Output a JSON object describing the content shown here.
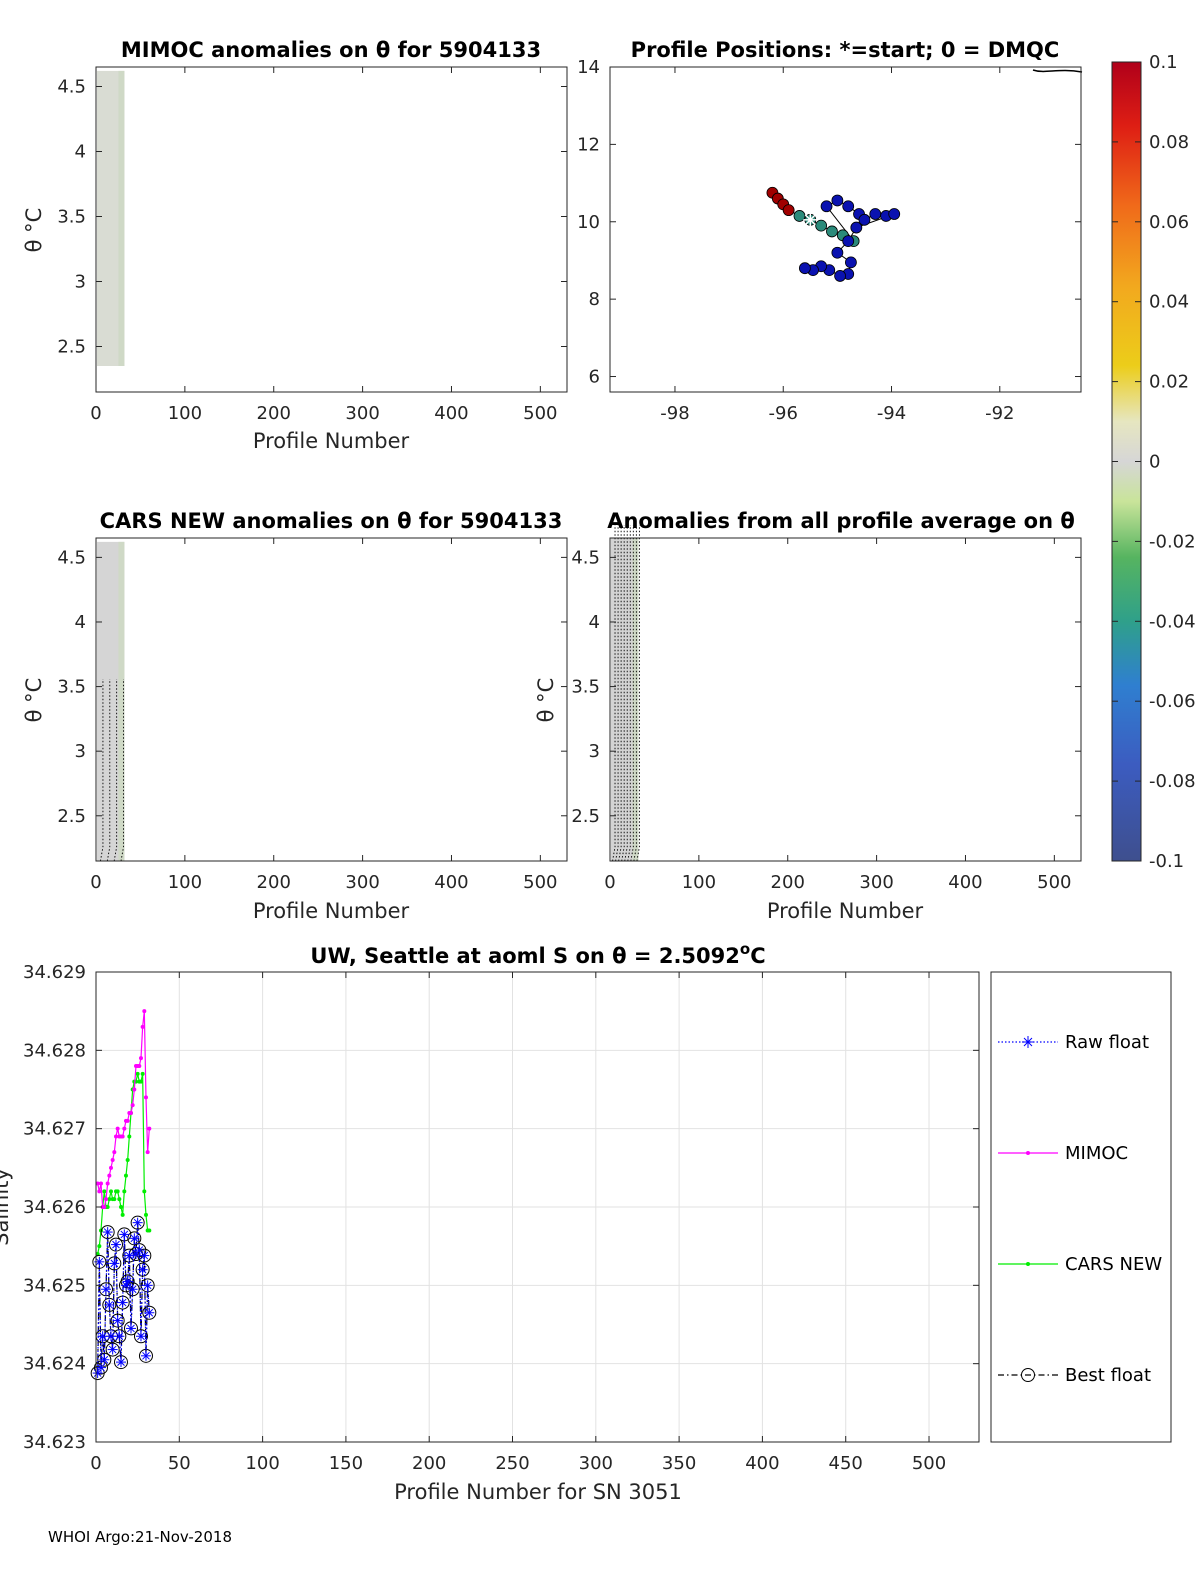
{
  "footer": "WHOI Argo:21-Nov-2018",
  "colorbar": {
    "ticks": [
      "0.1",
      "0.08",
      "0.06",
      "0.04",
      "0.02",
      "0",
      "-0.02",
      "-0.04",
      "-0.06",
      "-0.08",
      "-0.1"
    ],
    "range": [
      -0.1,
      0.1
    ],
    "colormap": "parula-jet"
  },
  "chart_data": [
    {
      "id": "mimoc",
      "type": "heatmap",
      "title": "MIMOC anomalies on θ  for 5904133",
      "xlabel": "Profile Number",
      "ylabel": "θ °C",
      "xlim": [
        0,
        530
      ],
      "ylim": [
        2.15,
        4.65
      ],
      "xticks": [
        "0",
        "100",
        "200",
        "300",
        "400",
        "500"
      ],
      "yticks": [
        "2.5",
        "3",
        "3.5",
        "4",
        "4.5"
      ],
      "data_x_range": [
        0,
        32
      ],
      "data_y_range": [
        2.35,
        4.62
      ],
      "fill_color": "#d9dcd3"
    },
    {
      "id": "positions",
      "type": "scatter",
      "title": "Profile Positions: *=start; 0 = DMQC",
      "xlabel": "",
      "ylabel": "",
      "xlim": [
        -99.2,
        -90.5
      ],
      "ylim": [
        5.6,
        14
      ],
      "xticks": [
        "-98",
        "-96",
        "-94",
        "-92"
      ],
      "yticks": [
        "6",
        "8",
        "10",
        "12",
        "14"
      ],
      "start": {
        "lon": -95.5,
        "lat": 10.05
      },
      "points": [
        {
          "lon": -96.2,
          "lat": 10.75
        },
        {
          "lon": -96.1,
          "lat": 10.6
        },
        {
          "lon": -96.0,
          "lat": 10.45
        },
        {
          "lon": -95.9,
          "lat": 10.3
        },
        {
          "lon": -95.7,
          "lat": 10.15
        },
        {
          "lon": -95.5,
          "lat": 10.05
        },
        {
          "lon": -95.3,
          "lat": 9.9
        },
        {
          "lon": -95.1,
          "lat": 9.75
        },
        {
          "lon": -94.9,
          "lat": 9.65
        },
        {
          "lon": -94.7,
          "lat": 9.5
        },
        {
          "lon": -95.2,
          "lat": 10.4
        },
        {
          "lon": -95.0,
          "lat": 10.55
        },
        {
          "lon": -94.8,
          "lat": 10.4
        },
        {
          "lon": -94.6,
          "lat": 10.2
        },
        {
          "lon": -94.5,
          "lat": 10.05
        },
        {
          "lon": -94.3,
          "lat": 10.2
        },
        {
          "lon": -94.1,
          "lat": 10.15
        },
        {
          "lon": -93.95,
          "lat": 10.2
        },
        {
          "lon": -94.65,
          "lat": 9.85
        },
        {
          "lon": -94.8,
          "lat": 9.5
        },
        {
          "lon": -95.0,
          "lat": 9.2
        },
        {
          "lon": -94.75,
          "lat": 8.95
        },
        {
          "lon": -94.8,
          "lat": 8.65
        },
        {
          "lon": -94.95,
          "lat": 8.6
        },
        {
          "lon": -95.15,
          "lat": 8.75
        },
        {
          "lon": -95.3,
          "lat": 8.85
        },
        {
          "lon": -95.45,
          "lat": 8.75
        },
        {
          "lon": -95.6,
          "lat": 8.8
        }
      ]
    },
    {
      "id": "cars",
      "type": "heatmap",
      "title": "CARS NEW anomalies on θ for 5904133",
      "xlabel": "Profile Number",
      "ylabel": "θ °C",
      "xlim": [
        0,
        530
      ],
      "ylim": [
        2.15,
        4.65
      ],
      "xticks": [
        "0",
        "100",
        "200",
        "300",
        "400",
        "500"
      ],
      "yticks": [
        "2.5",
        "3",
        "3.5",
        "4",
        "4.5"
      ],
      "data_x_range": [
        0,
        32
      ],
      "data_y_range": [
        2.15,
        4.62
      ],
      "fill_color": "#d5d5d5"
    },
    {
      "id": "allprof",
      "type": "heatmap",
      "title": "Anomalies from all profile average on θ",
      "xlabel": "Profile Number",
      "ylabel": "θ °C",
      "xlim": [
        0,
        530
      ],
      "ylim": [
        2.15,
        4.65
      ],
      "xticks": [
        "0",
        "100",
        "200",
        "300",
        "400",
        "500"
      ],
      "yticks": [
        "2.5",
        "3",
        "3.5",
        "4",
        "4.5"
      ],
      "data_x_range": [
        0,
        32
      ],
      "data_y_range": [
        2.15,
        4.65
      ],
      "fill_color": "#d3d3d3"
    },
    {
      "id": "salinity",
      "type": "line",
      "title": "UW, Seattle at aoml S on θ = 2.5092",
      "title_sup": "o",
      "title_unit": "C",
      "xlabel": "Profile Number for SN 3051",
      "ylabel": "Salinity",
      "xlim": [
        0,
        530
      ],
      "ylim": [
        34.623,
        34.629
      ],
      "xticks": [
        "0",
        "50",
        "100",
        "150",
        "200",
        "250",
        "300",
        "350",
        "400",
        "450",
        "500"
      ],
      "yticks": [
        "34.623",
        "34.624",
        "34.625",
        "34.626",
        "34.627",
        "34.628",
        "34.629"
      ],
      "grid": true,
      "legend": "right-outside",
      "x": [
        1,
        2,
        3,
        4,
        5,
        6,
        7,
        8,
        9,
        10,
        11,
        12,
        13,
        14,
        15,
        16,
        17,
        18,
        19,
        20,
        21,
        22,
        23,
        24,
        25,
        26,
        27,
        28,
        29,
        30,
        31,
        32
      ],
      "series": [
        {
          "name": "Raw float",
          "color": "#0000ff",
          "marker": "asterisk",
          "values": [
            34.62388,
            34.6253,
            34.62395,
            34.62435,
            34.62405,
            34.62495,
            34.62568,
            34.62475,
            34.62435,
            34.62418,
            34.62528,
            34.62552,
            34.62455,
            34.62435,
            34.62402,
            34.62478,
            34.62565,
            34.625,
            34.62505,
            34.62538,
            34.62445,
            34.62495,
            34.6256,
            34.6254,
            34.6258,
            34.62545,
            34.62435,
            34.6252,
            34.62538,
            34.6241,
            34.625,
            34.62465
          ]
        },
        {
          "name": "MIMOC",
          "color": "#ff00ff",
          "marker": "dot",
          "values": [
            34.6263,
            34.6262,
            34.6263,
            34.626,
            34.626,
            34.6261,
            34.6263,
            34.6264,
            34.6265,
            34.6266,
            34.6267,
            34.6269,
            34.627,
            34.6269,
            34.6269,
            34.6269,
            34.627,
            34.6271,
            34.6271,
            34.6272,
            34.6272,
            34.6273,
            34.6275,
            34.6278,
            34.6278,
            34.6278,
            34.6279,
            34.6283,
            34.6285,
            34.6274,
            34.6267,
            34.627
          ]
        },
        {
          "name": "CARS NEW",
          "color": "#00ee00",
          "marker": "dot",
          "values": [
            34.6254,
            34.6255,
            34.6257,
            34.626,
            34.6262,
            34.626,
            34.626,
            34.6261,
            34.6262,
            34.6261,
            34.6261,
            34.6262,
            34.6262,
            34.6261,
            34.626,
            34.6259,
            34.6262,
            34.6264,
            34.6266,
            34.6269,
            34.6272,
            34.6275,
            34.6276,
            34.6276,
            34.6277,
            34.6276,
            34.6276,
            34.6277,
            34.6262,
            34.6259,
            34.6257,
            34.6257
          ]
        },
        {
          "name": "Best float",
          "color": "#000000",
          "marker": "circle",
          "values": [
            34.62388,
            34.6253,
            34.62395,
            34.62435,
            34.62405,
            34.62495,
            34.62568,
            34.62475,
            34.62435,
            34.62418,
            34.62528,
            34.62552,
            34.62455,
            34.62435,
            34.62402,
            34.62478,
            34.62565,
            34.625,
            34.62505,
            34.62538,
            34.62445,
            34.62495,
            34.6256,
            34.6254,
            34.6258,
            34.62545,
            34.62435,
            34.6252,
            34.62538,
            34.6241,
            34.625,
            34.62465
          ]
        }
      ]
    }
  ]
}
